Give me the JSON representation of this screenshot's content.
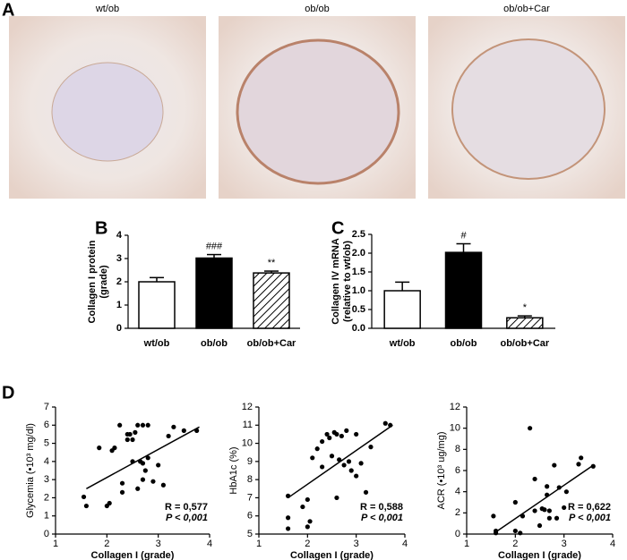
{
  "figure": {
    "panel_labels": [
      "A",
      "B",
      "C",
      "D"
    ],
    "micrograph_labels": [
      "wt/ob",
      "ob/ob",
      "ob/ob+Car"
    ]
  },
  "chart_data": [
    {
      "type": "bar",
      "y_label": [
        "Collagen I protein",
        "(grade)"
      ],
      "categories": [
        "wt/ob",
        "ob/ob",
        "ob/ob+Car"
      ],
      "values": [
        2.0,
        3.02,
        2.38
      ],
      "errors": [
        0.18,
        0.15,
        0.08
      ],
      "value_annotations": [
        null,
        "###",
        "**"
      ],
      "fills": [
        "#ffffff",
        "#000000",
        "hatch"
      ],
      "ylim": [
        0,
        4
      ],
      "yticks": [
        0,
        1,
        2,
        3,
        4
      ]
    },
    {
      "type": "bar",
      "y_label": [
        "Collagen IV mRNA",
        "(relative to wt/ob)"
      ],
      "categories": [
        "wt/ob",
        "ob/ob",
        "ob/ob+Car"
      ],
      "values": [
        1.0,
        2.02,
        0.28
      ],
      "errors": [
        0.23,
        0.23,
        0.05
      ],
      "value_annotations": [
        null,
        "#",
        "*"
      ],
      "fills": [
        "#ffffff",
        "#000000",
        "hatch"
      ],
      "ylim": [
        0,
        2.5
      ],
      "yticks": [
        {
          "value": 0,
          "label": "0.0"
        },
        0.5,
        {
          "value": 1,
          "label": "1.0"
        },
        1.5,
        {
          "value": 2,
          "label": "2.0"
        },
        2.5
      ]
    },
    {
      "type": "scatter",
      "x_label": "Collagen I (grade)",
      "y_label": "Glycemia (•10³ mg/dl)",
      "annotations": [
        "R = 0,577",
        "P < 0,001"
      ],
      "xlim": [
        1,
        4
      ],
      "xticks": [
        1,
        2,
        3,
        4
      ],
      "ylim": [
        0,
        7
      ],
      "yticks": [
        0,
        1,
        2,
        3,
        4,
        5,
        6,
        7
      ],
      "x": [
        1.55,
        1.6,
        1.85,
        2.0,
        2.05,
        2.1,
        2.15,
        2.25,
        2.3,
        2.3,
        2.4,
        2.4,
        2.45,
        2.55,
        2.5,
        2.5,
        2.6,
        2.7,
        2.7,
        2.65,
        2.6,
        2.7,
        2.75,
        2.8,
        2.8,
        2.9,
        3.0,
        3.1,
        3.2,
        3.3,
        3.5,
        3.75
      ],
      "values": [
        2.05,
        1.55,
        4.75,
        1.55,
        1.7,
        4.6,
        4.75,
        6.0,
        2.3,
        2.8,
        5.5,
        5.2,
        5.5,
        5.6,
        4.0,
        5.2,
        6.0,
        6.0,
        3.9,
        4.0,
        2.5,
        3.0,
        3.5,
        6.0,
        4.2,
        2.9,
        3.8,
        2.7,
        5.4,
        5.9,
        5.7,
        5.7
      ],
      "fit_line": {
        "x": [
          1.6,
          3.8
        ],
        "values": [
          2.5,
          5.9
        ]
      }
    },
    {
      "type": "scatter",
      "x_label": "Collagen I (grade)",
      "y_label": "HbA1c (%)",
      "annotations": [
        "R = 0,588",
        "P < 0,001"
      ],
      "xlim": [
        1,
        4
      ],
      "xticks": [
        1,
        2,
        3,
        4
      ],
      "ylim": [
        5,
        12
      ],
      "yticks": [
        5,
        6,
        7,
        8,
        9,
        10,
        11,
        12
      ],
      "x": [
        1.6,
        1.6,
        1.6,
        1.9,
        2.0,
        2.0,
        2.05,
        2.1,
        2.2,
        2.3,
        2.4,
        2.45,
        2.5,
        2.55,
        2.6,
        2.65,
        2.7,
        2.6,
        2.75,
        2.8,
        2.85,
        2.9,
        3.0,
        3.0,
        3.1,
        3.2,
        3.3,
        3.6,
        3.7,
        2.3
      ],
      "values": [
        7.1,
        5.9,
        5.3,
        6.5,
        5.4,
        6.9,
        5.7,
        9.2,
        9.7,
        10.1,
        10.5,
        10.3,
        9.3,
        10.6,
        10.5,
        9.1,
        10.4,
        7.0,
        8.8,
        10.7,
        9.0,
        8.5,
        10.5,
        8.2,
        8.9,
        7.3,
        9.8,
        11.1,
        11.0,
        8.7
      ],
      "fit_line": {
        "x": [
          1.6,
          3.75
        ],
        "values": [
          7.0,
          11.0
        ]
      }
    },
    {
      "type": "scatter",
      "x_label": "Collagen I (grade)",
      "y_label": "ACR (•10³ ug/mg)",
      "annotations": [
        "R = 0,622",
        "P < 0,001"
      ],
      "xlim": [
        1,
        4
      ],
      "xticks": [
        1,
        2,
        3,
        4
      ],
      "ylim": [
        0,
        12
      ],
      "yticks": [
        0,
        2,
        4,
        6,
        8,
        10,
        12
      ],
      "x": [
        1.55,
        1.6,
        1.6,
        2.0,
        2.0,
        2.1,
        2.15,
        2.3,
        2.4,
        2.4,
        2.5,
        2.55,
        2.6,
        2.65,
        2.65,
        2.7,
        2.7,
        2.8,
        2.85,
        2.9,
        3.0,
        3.05,
        3.3,
        3.35,
        3.6
      ],
      "values": [
        1.7,
        0.3,
        0.1,
        3.0,
        0.3,
        0.1,
        1.7,
        10.0,
        2.2,
        5.2,
        0.8,
        2.4,
        2.3,
        3.7,
        4.5,
        2.2,
        1.5,
        6.5,
        1.5,
        4.4,
        2.5,
        4.0,
        6.6,
        7.2,
        6.4
      ],
      "fit_line": {
        "x": [
          1.6,
          3.6
        ],
        "values": [
          0.2,
          6.5
        ]
      }
    }
  ]
}
